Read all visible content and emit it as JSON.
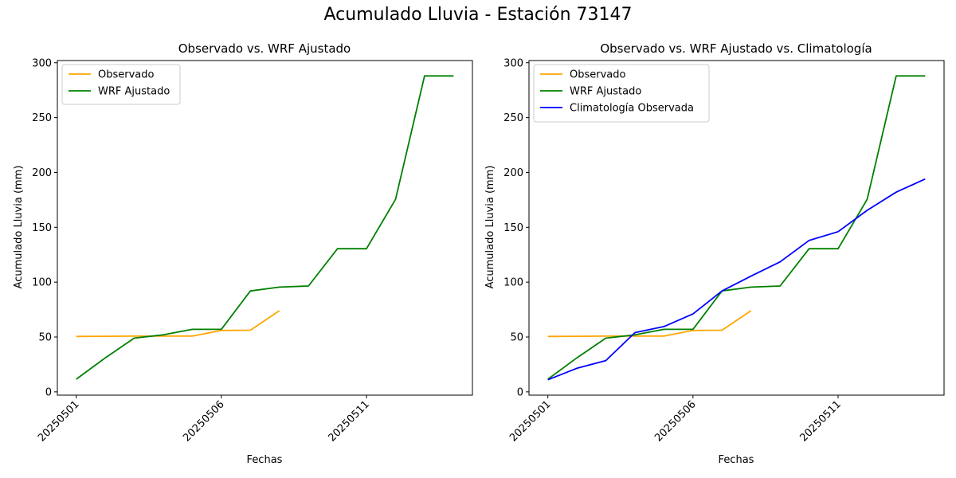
{
  "suptitle": "Acumulado Lluvia - Estación 73147",
  "colors": {
    "observado": "#ffa500",
    "wrf": "#008000",
    "climatologia": "#0000ff"
  },
  "chart_data": [
    {
      "type": "line",
      "title": "Observado vs. WRF Ajustado",
      "xlabel": "Fechas",
      "ylabel": "Acumulado Lluvia (mm)",
      "x": [
        "20250501",
        "20250502",
        "20250503",
        "20250504",
        "20250505",
        "20250506",
        "20250507",
        "20250508",
        "20250509",
        "20250510",
        "20250511",
        "20250512",
        "20250513",
        "20250514"
      ],
      "xtick_labels": [
        "20250501",
        "20250506",
        "20250511"
      ],
      "ylim": [
        -3,
        302
      ],
      "yticks": [
        0,
        50,
        100,
        150,
        200,
        250,
        300
      ],
      "legend_position": "top-left",
      "series": [
        {
          "name": "Observado",
          "color": "#ffa500",
          "values": [
            50.5,
            50.7,
            50.8,
            50.8,
            50.8,
            56.0,
            56.2,
            74.0,
            null,
            null,
            null,
            null,
            null,
            null
          ]
        },
        {
          "name": "WRF Ajustado",
          "color": "#008000",
          "values": [
            11.5,
            31.0,
            49.0,
            52.0,
            57.0,
            57.0,
            92.0,
            95.5,
            96.5,
            130.5,
            130.5,
            175.5,
            288.0,
            288.0
          ]
        }
      ]
    },
    {
      "type": "line",
      "title": "Observado vs. WRF Ajustado vs. Climatología",
      "xlabel": "Fechas",
      "ylabel": "Acumulado Lluvia (mm)",
      "x": [
        "20250501",
        "20250502",
        "20250503",
        "20250504",
        "20250505",
        "20250506",
        "20250507",
        "20250508",
        "20250509",
        "20250510",
        "20250511",
        "20250512",
        "20250513",
        "20250514"
      ],
      "xtick_labels": [
        "20250501",
        "20250506",
        "20250511"
      ],
      "ylim": [
        -3,
        302
      ],
      "yticks": [
        0,
        50,
        100,
        150,
        200,
        250,
        300
      ],
      "legend_position": "top-left",
      "series": [
        {
          "name": "Observado",
          "color": "#ffa500",
          "values": [
            50.5,
            50.7,
            50.8,
            50.8,
            50.8,
            56.0,
            56.2,
            74.0,
            null,
            null,
            null,
            null,
            null,
            null
          ]
        },
        {
          "name": "WRF Ajustado",
          "color": "#008000",
          "values": [
            11.5,
            31.0,
            49.0,
            52.0,
            57.0,
            57.0,
            92.0,
            95.5,
            96.5,
            130.5,
            130.5,
            175.5,
            288.0,
            288.0
          ]
        },
        {
          "name": "Climatología Observada",
          "color": "#0000ff",
          "values": [
            11.0,
            21.5,
            28.5,
            54.0,
            59.5,
            71.0,
            92.0,
            105.5,
            118.5,
            138.0,
            146.0,
            165.5,
            182.0,
            194.0
          ]
        }
      ]
    }
  ]
}
